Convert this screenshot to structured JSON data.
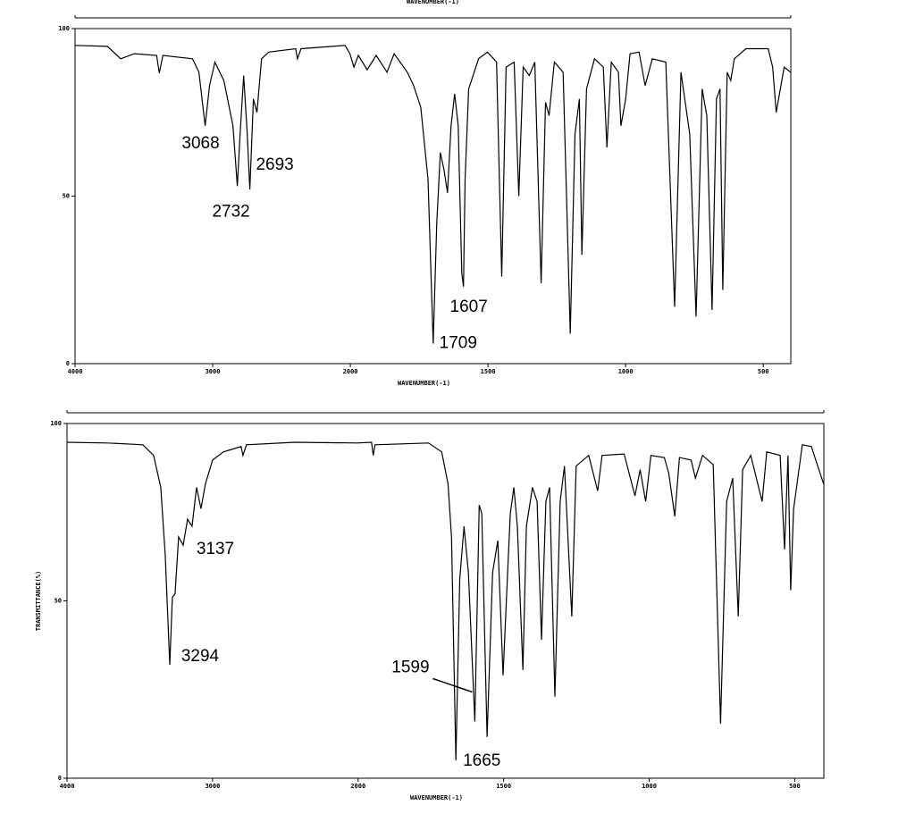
{
  "chart_data": [
    {
      "type": "line",
      "title": "WAVENUMBER(-1)",
      "xlabel": "WAVENUMBER(-1)",
      "color": "#000000",
      "xlim": [
        4000,
        400
      ],
      "ylim": [
        0,
        100
      ],
      "x_scale_break": 2000,
      "x_scale_factor": 2,
      "xticks": [
        4000,
        3000,
        2000,
        1500,
        1000,
        500
      ],
      "yticks": [
        0,
        50,
        100
      ],
      "x": [
        4000,
        3765,
        3668,
        3570,
        3407,
        3388,
        3362,
        3147,
        3100,
        3055,
        3023,
        2984,
        2919,
        2853,
        2821,
        2801,
        2775,
        2749,
        2730,
        2704,
        2678,
        2645,
        2593,
        2397,
        2384,
        2358,
        2039,
        2003,
        1987,
        1971,
        1939,
        1906,
        1867,
        1841,
        1793,
        1770,
        1744,
        1718,
        1699,
        1686,
        1673,
        1660,
        1647,
        1634,
        1621,
        1608,
        1595,
        1589,
        1583,
        1570,
        1534,
        1502,
        1469,
        1450,
        1434,
        1405,
        1388,
        1372,
        1350,
        1330,
        1307,
        1291,
        1278,
        1259,
        1227,
        1201,
        1184,
        1168,
        1159,
        1142,
        1113,
        1081,
        1068,
        1052,
        1026,
        1017,
        1000,
        984,
        951,
        929,
        903,
        854,
        822,
        799,
        767,
        744,
        722,
        705,
        686,
        670,
        657,
        647,
        631,
        618,
        605,
        563,
        482,
        466,
        453,
        424,
        401
      ],
      "values": [
        95,
        94.7,
        91,
        92.5,
        92,
        86.7,
        92,
        91,
        87,
        71,
        83,
        90,
        84.5,
        71,
        53,
        68.5,
        86,
        68.5,
        52,
        79,
        75,
        91,
        93,
        94,
        91,
        94,
        95,
        92.5,
        88.5,
        92,
        87.7,
        92,
        87,
        92.5,
        87,
        83,
        76.5,
        55,
        6,
        42,
        63,
        58,
        51,
        71,
        80.5,
        71,
        27,
        23,
        55,
        82,
        91,
        93,
        90,
        26,
        88.5,
        90,
        50,
        88.5,
        86,
        90,
        24,
        78,
        74,
        90,
        87,
        9,
        68.5,
        79,
        32.5,
        82,
        91,
        88.5,
        64.5,
        90,
        87,
        71,
        79,
        92.5,
        93,
        83,
        91,
        90,
        17,
        87,
        68.5,
        14,
        82,
        74,
        16,
        79,
        82,
        22,
        87,
        84.5,
        91,
        94,
        94,
        88.5,
        75,
        88.5,
        87
      ],
      "annotations": [
        {
          "text": "3068",
          "x": 3055,
          "y": 71
        },
        {
          "text": "2693",
          "x": 2730,
          "y": 52
        },
        {
          "text": "2732",
          "x": 2821,
          "y": 53
        },
        {
          "text": "1607",
          "x": 1589,
          "y": 23
        },
        {
          "text": "1709",
          "x": 1699,
          "y": 6
        }
      ]
    },
    {
      "type": "line",
      "xlabel": "WAVENUMBER(-1)",
      "ylabel": "TRANSMITTANCE(%)",
      "color": "#000000",
      "xlim": [
        4000,
        400
      ],
      "ylim": [
        0,
        100
      ],
      "x_scale_break": 2000,
      "x_scale_factor": 2,
      "xticks": [
        4000,
        3000,
        2000,
        1500,
        1000,
        500
      ],
      "yticks": [
        0,
        50,
        100
      ],
      "x": [
        4000,
        3724,
        3479,
        3405,
        3356,
        3325,
        3294,
        3276,
        3258,
        3233,
        3202,
        3172,
        3141,
        3110,
        3080,
        3049,
        3000,
        2926,
        2804,
        2791,
        2767,
        2436,
        2006,
        1954,
        1948,
        1942,
        1758,
        1713,
        1691,
        1679,
        1664,
        1651,
        1636,
        1621,
        1599,
        1584,
        1575,
        1557,
        1538,
        1520,
        1502,
        1489,
        1477,
        1465,
        1453,
        1434,
        1422,
        1401,
        1385,
        1370,
        1355,
        1342,
        1324,
        1306,
        1291,
        1266,
        1251,
        1208,
        1177,
        1162,
        1086,
        1049,
        1031,
        1012,
        994,
        948,
        933,
        912,
        896,
        856,
        841,
        817,
        780,
        755,
        734,
        713,
        694,
        679,
        651,
        612,
        596,
        550,
        535,
        523,
        514,
        504,
        474,
        443,
        401
      ],
      "values": [
        94.7,
        94.5,
        94,
        91,
        82,
        63,
        32,
        51,
        52,
        68,
        65.7,
        73,
        71,
        82,
        76,
        83,
        89.7,
        92,
        93.5,
        91,
        94,
        94.7,
        94.5,
        94.7,
        91,
        94,
        94.5,
        92,
        83,
        68,
        5,
        56,
        71,
        58,
        16,
        77,
        74.6,
        11.6,
        58,
        67,
        29,
        53,
        74.6,
        82,
        71,
        30.5,
        71,
        82,
        78,
        39,
        78,
        82,
        23,
        78,
        88,
        45.6,
        88,
        91,
        81,
        91,
        91.4,
        79.6,
        87,
        78,
        91,
        90.4,
        86,
        73.8,
        90.4,
        89.7,
        84.6,
        91,
        88.4,
        15.4,
        78,
        84.6,
        45.6,
        87,
        91,
        78,
        92,
        91,
        64.5,
        91,
        53,
        75.8,
        94,
        93.5,
        83
      ],
      "annotations": [
        {
          "text": "3294",
          "x": 3294,
          "y": 32
        },
        {
          "text": "3137",
          "x": 3202,
          "y": 65.7
        },
        {
          "text": "1599",
          "x": 1599,
          "y": 16
        },
        {
          "text": "1665",
          "x": 1664,
          "y": 5
        }
      ]
    }
  ]
}
